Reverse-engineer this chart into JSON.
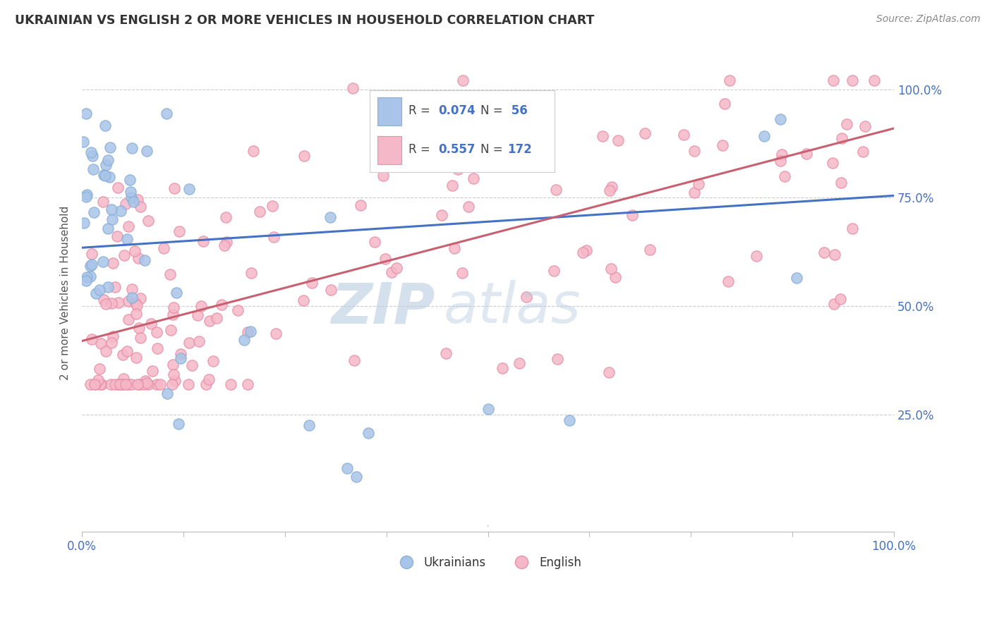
{
  "title": "UKRAINIAN VS ENGLISH 2 OR MORE VEHICLES IN HOUSEHOLD CORRELATION CHART",
  "source": "Source: ZipAtlas.com",
  "ylabel": "2 or more Vehicles in Household",
  "ukrainian_color": "#a8c4e8",
  "ukrainian_edge_color": "#8ab0d8",
  "english_color": "#f5b8c8",
  "english_edge_color": "#e890a8",
  "ukrainian_line_color": "#4472c4",
  "english_line_color": "#d0607080",
  "english_line_color2": "#c86070",
  "background_color": "#ffffff",
  "grid_color": "#cccccc",
  "watermark_zip_color": "#b8cce0",
  "watermark_atlas_color": "#b8cce0",
  "ytick_labels": [
    "25.0%",
    "50.0%",
    "75.0%",
    "100.0%"
  ],
  "ytick_values": [
    0.25,
    0.5,
    0.75,
    1.0
  ],
  "xlim": [
    0.0,
    1.0
  ],
  "ylim": [
    -0.02,
    1.08
  ],
  "uk_line_y0": 0.635,
  "uk_line_y1": 0.755,
  "en_line_y0": 0.42,
  "en_line_y1": 0.91
}
